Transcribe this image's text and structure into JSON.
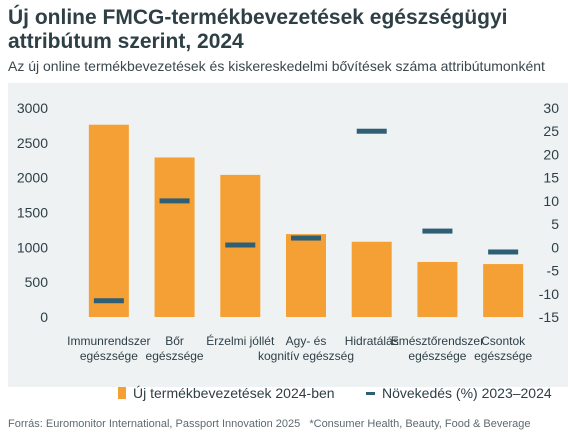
{
  "title": "Új online FMCG-termékbevezetések egészségügyi attribútum szerint, 2024",
  "subtitle": "Az új online termékbevezetések és kiskereskedelmi bővítések száma attribútumonként",
  "legend": {
    "bars": "Új termékbevezetések 2024-ben",
    "markers": "Növekedés (%) 2023–2024"
  },
  "source": {
    "text": "Forrás: Euromonitor International, Passport Innovation 2025",
    "note": "*Consumer Health, Beauty, Food & Beverage"
  },
  "colors": {
    "bar": "#f5a034",
    "marker": "#2f5f75",
    "plot_background": "#eef2f3",
    "text": "#2f3f46"
  },
  "chart_data": {
    "type": "bar",
    "categories": [
      [
        "Immunrendszer",
        "egészsége"
      ],
      [
        "Bőr",
        "egészsége"
      ],
      [
        "Érzelmi jóllét"
      ],
      [
        "Agy- és",
        "kognitív egészség"
      ],
      [
        "Hidratálás"
      ],
      [
        "Emésztőrendszer",
        "egészsége"
      ],
      [
        "Csontok",
        "egészsége"
      ]
    ],
    "series": [
      {
        "name": "Új termékbevezetések 2024-ben",
        "type": "bar",
        "axis": "left",
        "values": [
          2760,
          2290,
          2040,
          1190,
          1080,
          790,
          760
        ]
      },
      {
        "name": "Növekedés (%) 2023–2024",
        "type": "marker",
        "axis": "right",
        "values": [
          -11.5,
          10.0,
          0.5,
          2.0,
          25.0,
          3.5,
          -1.0
        ]
      }
    ],
    "y_left": {
      "ticks": [
        0,
        500,
        1000,
        1500,
        2000,
        2500,
        3000
      ],
      "lim": [
        0,
        3000
      ]
    },
    "y_right": {
      "ticks": [
        -15,
        -10,
        -5,
        0,
        5,
        10,
        15,
        20,
        25,
        30
      ],
      "lim": [
        -15,
        30
      ]
    },
    "grid": false,
    "legend_position": "bottom"
  }
}
